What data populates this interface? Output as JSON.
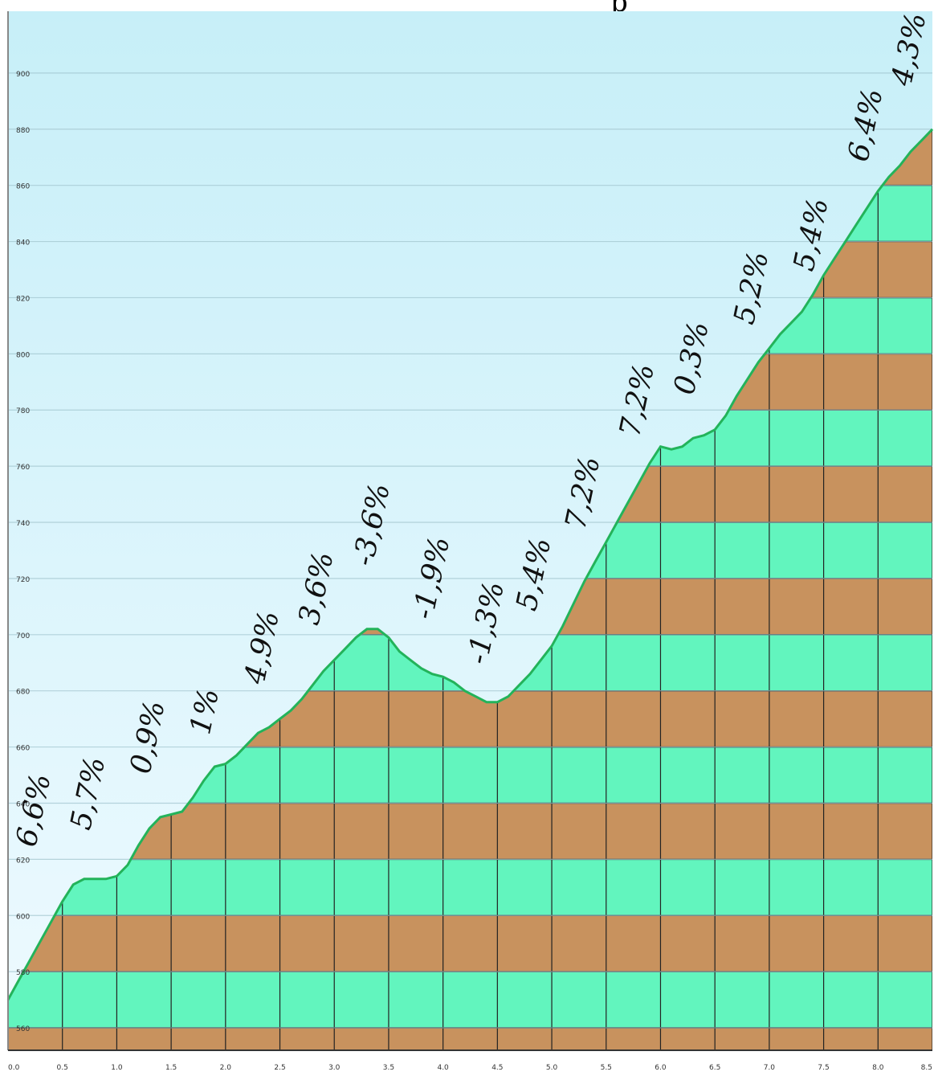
{
  "title_fragment": "p",
  "chart_data": {
    "type": "area",
    "title": "",
    "xlabel": "",
    "ylabel": "",
    "xlim": [
      0.0,
      8.5
    ],
    "ylim": [
      550,
      920
    ],
    "grid": true,
    "x_ticks": [
      "0.0",
      "0.5",
      "1.0",
      "1.5",
      "2.0",
      "2.5",
      "3.0",
      "3.5",
      "4.0",
      "4.5",
      "5.0",
      "5.5",
      "6.0",
      "6.5",
      "7.0",
      "7.5",
      "8.0",
      "8.5"
    ],
    "y_ticks": [
      "560",
      "580",
      "600",
      "620",
      "640",
      "660",
      "680",
      "700",
      "720",
      "740",
      "760",
      "780",
      "800",
      "820",
      "840",
      "860",
      "880",
      "900"
    ],
    "profile": {
      "x": [
        0.0,
        0.1,
        0.2,
        0.3,
        0.4,
        0.5,
        0.6,
        0.7,
        0.8,
        0.9,
        1.0,
        1.1,
        1.2,
        1.3,
        1.4,
        1.5,
        1.6,
        1.7,
        1.8,
        1.9,
        2.0,
        2.1,
        2.2,
        2.3,
        2.4,
        2.5,
        2.6,
        2.7,
        2.8,
        2.9,
        3.0,
        3.1,
        3.2,
        3.3,
        3.4,
        3.5,
        3.6,
        3.7,
        3.8,
        3.9,
        4.0,
        4.1,
        4.2,
        4.3,
        4.4,
        4.5,
        4.6,
        4.7,
        4.8,
        4.9,
        5.0,
        5.1,
        5.2,
        5.3,
        5.4,
        5.5,
        5.6,
        5.7,
        5.8,
        5.9,
        6.0,
        6.1,
        6.2,
        6.3,
        6.4,
        6.5,
        6.6,
        6.7,
        6.8,
        6.9,
        7.0,
        7.1,
        7.2,
        7.3,
        7.4,
        7.5,
        7.6,
        7.7,
        7.8,
        7.9,
        8.0,
        8.1,
        8.2,
        8.3,
        8.4,
        8.5
      ],
      "y": [
        568,
        575,
        582,
        589,
        596,
        603,
        609,
        611,
        611,
        611,
        612,
        616,
        623,
        629,
        633,
        634,
        635,
        640,
        646,
        651,
        652,
        655,
        659,
        663,
        665,
        668,
        671,
        675,
        680,
        685,
        689,
        693,
        697,
        700,
        700,
        697,
        692,
        689,
        686,
        684,
        683,
        681,
        678,
        676,
        674,
        674,
        676,
        680,
        684,
        689,
        694,
        701,
        709,
        717,
        724,
        731,
        738,
        745,
        752,
        759,
        765,
        764,
        765,
        768,
        769,
        771,
        776,
        783,
        789,
        795,
        800,
        805,
        809,
        813,
        819,
        826,
        832,
        838,
        844,
        850,
        856,
        861,
        865,
        870,
        874,
        878
      ]
    },
    "band_colors": [
      "#c8925e",
      "#62f5be"
    ],
    "sky_colors": [
      "#c7eff8",
      "#eefaff"
    ],
    "line_color": "#23b35a",
    "grade_labels": [
      {
        "text": "6,6%",
        "x": 0.25,
        "y": 622
      },
      {
        "text": "5,7%",
        "x": 0.75,
        "y": 628
      },
      {
        "text": "0,9%",
        "x": 1.3,
        "y": 648
      },
      {
        "text": "1%",
        "x": 1.85,
        "y": 662
      },
      {
        "text": "4,9%",
        "x": 2.35,
        "y": 680
      },
      {
        "text": "3,6%",
        "x": 2.85,
        "y": 701
      },
      {
        "text": "-3,6%",
        "x": 3.35,
        "y": 722
      },
      {
        "text": "-1,9%",
        "x": 3.9,
        "y": 703
      },
      {
        "text": "-1,3%",
        "x": 4.4,
        "y": 687
      },
      {
        "text": "5,4%",
        "x": 4.85,
        "y": 706
      },
      {
        "text": "7,2%",
        "x": 5.3,
        "y": 735
      },
      {
        "text": "7,2%",
        "x": 5.8,
        "y": 768
      },
      {
        "text": "0,3%",
        "x": 6.3,
        "y": 783
      },
      {
        "text": "5,2%",
        "x": 6.85,
        "y": 808
      },
      {
        "text": "5,4%",
        "x": 7.4,
        "y": 827
      },
      {
        "text": "6,4%",
        "x": 7.9,
        "y": 866
      },
      {
        "text": "4,3%",
        "x": 8.3,
        "y": 893
      }
    ]
  }
}
